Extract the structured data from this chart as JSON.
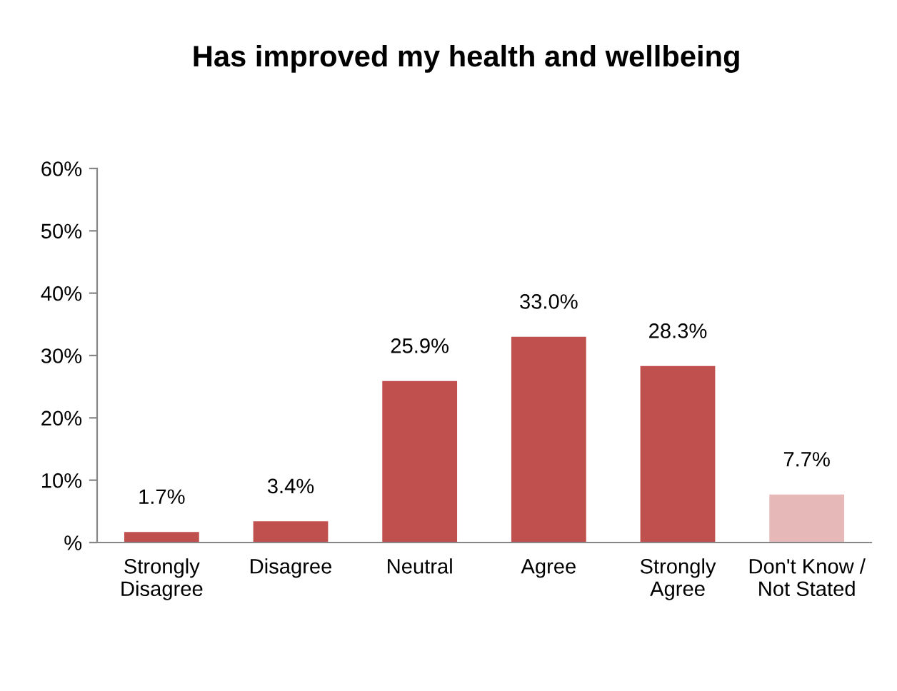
{
  "chart_data": {
    "type": "bar",
    "title": "Has improved my health and wellbeing",
    "categories": [
      "Strongly Disagree",
      "Disagree",
      "Neutral",
      "Agree",
      "Strongly Agree",
      "Don't Know / Not Stated"
    ],
    "values": [
      1.7,
      3.4,
      25.9,
      33.0,
      28.3,
      7.7
    ],
    "colors": [
      "#c0504d",
      "#c0504d",
      "#c0504d",
      "#c0504d",
      "#c0504d",
      "#e6b9b8"
    ],
    "value_labels": [
      "1.7%",
      "3.4%",
      "25.9%",
      "33.0%",
      "28.3%",
      "7.7%"
    ],
    "ylim": [
      0,
      60
    ],
    "yticks": [
      {
        "value": 0,
        "label": "%"
      },
      {
        "value": 10,
        "label": "10%"
      },
      {
        "value": 20,
        "label": "20%"
      },
      {
        "value": 30,
        "label": "30%"
      },
      {
        "value": 40,
        "label": "40%"
      },
      {
        "value": 50,
        "label": "50%"
      },
      {
        "value": 60,
        "label": "60%"
      }
    ],
    "grid": false
  }
}
